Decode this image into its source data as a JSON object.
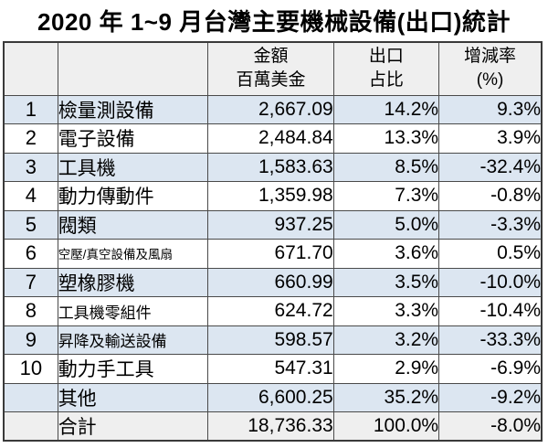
{
  "title": "2020 年 1~9 月台灣主要機械設備(出口)統計",
  "table": {
    "header": [
      {
        "key": "rank",
        "lines": []
      },
      {
        "key": "name",
        "lines": []
      },
      {
        "key": "amount",
        "lines": [
          "金額",
          "百萬美金"
        ]
      },
      {
        "key": "share",
        "lines": [
          "出口",
          "占比"
        ]
      },
      {
        "key": "change",
        "lines": [
          "增減率",
          "(%)"
        ]
      }
    ],
    "rows": [
      {
        "rank": "1",
        "name": "檢量測設備",
        "amount": "2,667.09",
        "share": "14.2%",
        "change": "9.3%",
        "bg": "blue",
        "name_size": "lg"
      },
      {
        "rank": "2",
        "name": "電子設備",
        "amount": "2,484.84",
        "share": "13.3%",
        "change": "3.9%",
        "bg": "white",
        "name_size": "lg"
      },
      {
        "rank": "3",
        "name": "工具機",
        "amount": "1,583.63",
        "share": "8.5%",
        "change": "-32.4%",
        "bg": "blue",
        "name_size": "lg"
      },
      {
        "rank": "4",
        "name": "動力傳動件",
        "amount": "1,359.98",
        "share": "7.3%",
        "change": "-0.8%",
        "bg": "white",
        "name_size": "lg"
      },
      {
        "rank": "5",
        "name": "閥類",
        "amount": "937.25",
        "share": "5.0%",
        "change": "-3.3%",
        "bg": "blue",
        "name_size": "lg"
      },
      {
        "rank": "6",
        "name": "空壓/真空設備及風扇",
        "amount": "671.70",
        "share": "3.6%",
        "change": "0.5%",
        "bg": "white",
        "name_size": "sm"
      },
      {
        "rank": "7",
        "name": "塑橡膠機",
        "amount": "660.99",
        "share": "3.5%",
        "change": "-10.0%",
        "bg": "blue",
        "name_size": "lg"
      },
      {
        "rank": "8",
        "name": "工具機零組件",
        "amount": "624.72",
        "share": "3.3%",
        "change": "-10.4%",
        "bg": "white",
        "name_size": "md"
      },
      {
        "rank": "9",
        "name": "昇降及輸送設備",
        "amount": "598.57",
        "share": "3.2%",
        "change": "-33.3%",
        "bg": "blue",
        "name_size": "md"
      },
      {
        "rank": "10",
        "name": "動力手工具",
        "amount": "547.31",
        "share": "2.9%",
        "change": "-6.9%",
        "bg": "white",
        "name_size": "lg"
      },
      {
        "rank": "",
        "name": "其他",
        "amount": "6,600.25",
        "share": "35.2%",
        "change": "-9.2%",
        "bg": "blue",
        "name_size": "lg"
      },
      {
        "rank": "",
        "name": "合計",
        "amount": "18,736.33",
        "share": "100.0%",
        "change": "-8.0%",
        "bg": "gray",
        "name_size": "lg"
      }
    ]
  },
  "colors": {
    "row_highlight": "#dce6f1",
    "header_bg": "#efefef",
    "total_row_bg": "#efefef",
    "border": "#4a4a4a",
    "text": "#000000"
  },
  "chart_data": {
    "type": "table",
    "title": "2020 年 1~9 月台灣主要機械設備(出口)統計",
    "columns": [
      "",
      "",
      "金額 百萬美金",
      "出口 占比",
      "增減率 (%)"
    ],
    "rows": [
      {
        "rank": 1,
        "item": "檢量測設備",
        "amount_musd": 2667.09,
        "export_share_pct": 14.2,
        "change_pct": 9.3
      },
      {
        "rank": 2,
        "item": "電子設備",
        "amount_musd": 2484.84,
        "export_share_pct": 13.3,
        "change_pct": 3.9
      },
      {
        "rank": 3,
        "item": "工具機",
        "amount_musd": 1583.63,
        "export_share_pct": 8.5,
        "change_pct": -32.4
      },
      {
        "rank": 4,
        "item": "動力傳動件",
        "amount_musd": 1359.98,
        "export_share_pct": 7.3,
        "change_pct": -0.8
      },
      {
        "rank": 5,
        "item": "閥類",
        "amount_musd": 937.25,
        "export_share_pct": 5.0,
        "change_pct": -3.3
      },
      {
        "rank": 6,
        "item": "空壓/真空設備及風扇",
        "amount_musd": 671.7,
        "export_share_pct": 3.6,
        "change_pct": 0.5
      },
      {
        "rank": 7,
        "item": "塑橡膠機",
        "amount_musd": 660.99,
        "export_share_pct": 3.5,
        "change_pct": -10.0
      },
      {
        "rank": 8,
        "item": "工具機零組件",
        "amount_musd": 624.72,
        "export_share_pct": 3.3,
        "change_pct": -10.4
      },
      {
        "rank": 9,
        "item": "昇降及輸送設備",
        "amount_musd": 598.57,
        "export_share_pct": 3.2,
        "change_pct": -33.3
      },
      {
        "rank": 10,
        "item": "動力手工具",
        "amount_musd": 547.31,
        "export_share_pct": 2.9,
        "change_pct": -6.9
      },
      {
        "rank": null,
        "item": "其他",
        "amount_musd": 6600.25,
        "export_share_pct": 35.2,
        "change_pct": -9.2
      },
      {
        "rank": null,
        "item": "合計",
        "amount_musd": 18736.33,
        "export_share_pct": 100.0,
        "change_pct": -8.0
      }
    ]
  }
}
